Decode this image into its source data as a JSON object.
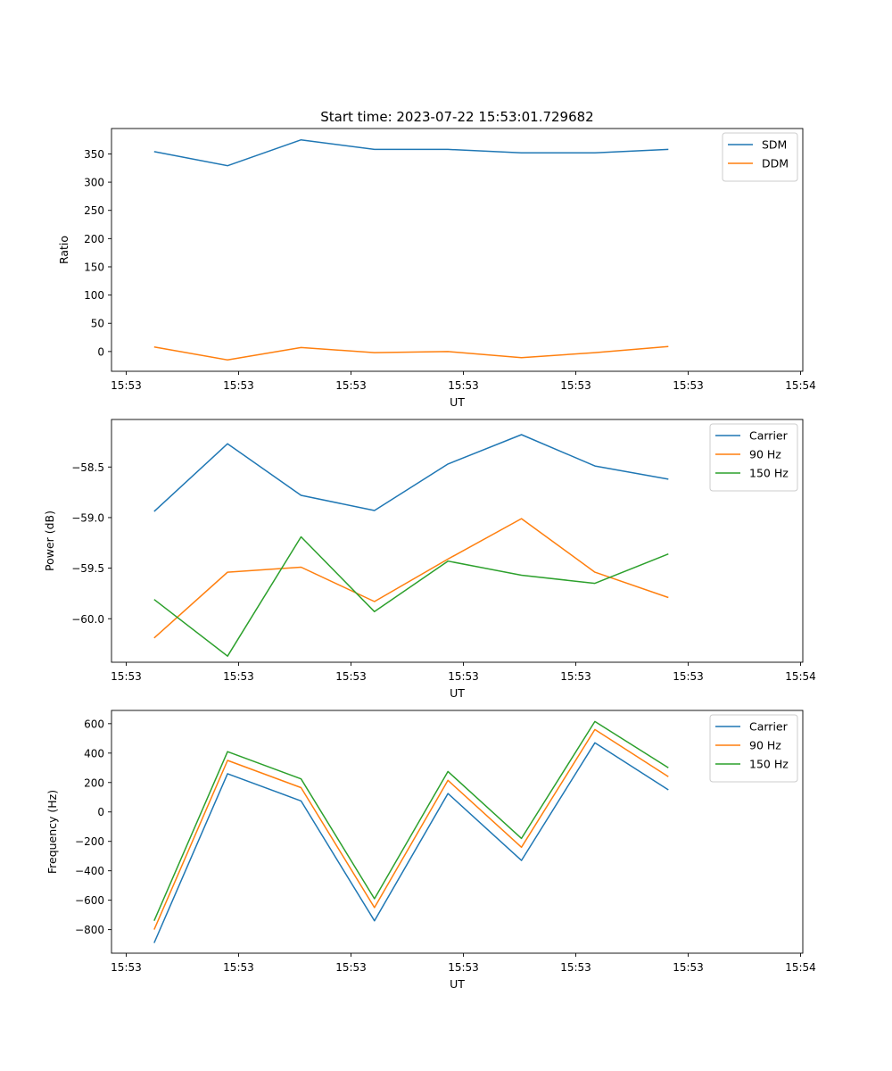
{
  "figure_title": "Start time: 2023-07-22 15:53:01.729682",
  "colors": {
    "blue": "#1f77b4",
    "orange": "#ff7f0e",
    "green": "#2ca02c"
  },
  "chart_data": [
    {
      "type": "line",
      "title": "Start time: 2023-07-22 15:53:01.729682",
      "xlabel": "UT",
      "ylabel": "Ratio",
      "x": [
        1,
        2,
        3,
        4,
        5,
        6,
        7,
        8
      ],
      "xlim": [
        0.42,
        9.83
      ],
      "xticks": [
        0.62,
        2.15,
        3.68,
        5.21,
        6.74,
        8.27,
        9.8
      ],
      "xtick_labels": [
        "15:53",
        "15:53",
        "15:53",
        "15:53",
        "15:53",
        "15:53",
        "15:54"
      ],
      "ylim": [
        -35,
        395
      ],
      "yticks": [
        0,
        50,
        100,
        150,
        200,
        250,
        300,
        350
      ],
      "ytick_labels": [
        "0",
        "50",
        "100",
        "150",
        "200",
        "250",
        "300",
        "350"
      ],
      "legend_position": "top-right",
      "series": [
        {
          "name": "SDM",
          "color": "#1f77b4",
          "values": [
            354,
            329,
            375,
            358,
            358,
            352,
            352,
            358
          ]
        },
        {
          "name": "DDM",
          "color": "#ff7f0e",
          "values": [
            8,
            -15,
            7,
            -2,
            0,
            -11,
            -2,
            9
          ]
        }
      ]
    },
    {
      "type": "line",
      "title": "",
      "xlabel": "UT",
      "ylabel": "Power (dB)",
      "x": [
        1,
        2,
        3,
        4,
        5,
        6,
        7,
        8
      ],
      "xlim": [
        0.42,
        9.83
      ],
      "xticks": [
        0.62,
        2.15,
        3.68,
        5.21,
        6.74,
        8.27,
        9.8
      ],
      "xtick_labels": [
        "15:53",
        "15:53",
        "15:53",
        "15:53",
        "15:53",
        "15:53",
        "15:54"
      ],
      "ylim": [
        -60.43,
        -58.03
      ],
      "yticks": [
        -60.0,
        -59.5,
        -59.0,
        -58.5
      ],
      "ytick_labels": [
        "−60.0",
        "−59.5",
        "−59.0",
        "−58.5"
      ],
      "legend_position": "top-right",
      "series": [
        {
          "name": "Carrier",
          "color": "#1f77b4",
          "values": [
            -58.94,
            -58.27,
            -58.78,
            -58.93,
            -58.47,
            -58.18,
            -58.49,
            -58.62
          ]
        },
        {
          "name": "90 Hz",
          "color": "#ff7f0e",
          "values": [
            -60.19,
            -59.54,
            -59.49,
            -59.83,
            -59.41,
            -59.01,
            -59.54,
            -59.79
          ]
        },
        {
          "name": "150 Hz",
          "color": "#2ca02c",
          "values": [
            -59.81,
            -60.37,
            -59.19,
            -59.93,
            -59.43,
            -59.57,
            -59.65,
            -59.36
          ]
        }
      ]
    },
    {
      "type": "line",
      "title": "",
      "xlabel": "UT",
      "ylabel": "Frequency (Hz)",
      "x": [
        1,
        2,
        3,
        4,
        5,
        6,
        7,
        8
      ],
      "xlim": [
        0.42,
        9.83
      ],
      "xticks": [
        0.62,
        2.15,
        3.68,
        5.21,
        6.74,
        8.27,
        9.8
      ],
      "xtick_labels": [
        "15:53",
        "15:53",
        "15:53",
        "15:53",
        "15:53",
        "15:53",
        "15:54"
      ],
      "ylim": [
        -960,
        690
      ],
      "yticks": [
        -800,
        -600,
        -400,
        -200,
        0,
        200,
        400,
        600
      ],
      "ytick_labels": [
        "−800",
        "−600",
        "−400",
        "−200",
        "0",
        "200",
        "400",
        "600"
      ],
      "legend_position": "top-right",
      "series": [
        {
          "name": "Carrier",
          "color": "#1f77b4",
          "values": [
            -890,
            260,
            75,
            -740,
            125,
            -330,
            470,
            150
          ]
        },
        {
          "name": "90 Hz",
          "color": "#ff7f0e",
          "values": [
            -800,
            350,
            165,
            -650,
            215,
            -240,
            560,
            240
          ]
        },
        {
          "name": "150 Hz",
          "color": "#2ca02c",
          "values": [
            -740,
            410,
            225,
            -590,
            275,
            -180,
            615,
            300
          ]
        }
      ]
    }
  ]
}
